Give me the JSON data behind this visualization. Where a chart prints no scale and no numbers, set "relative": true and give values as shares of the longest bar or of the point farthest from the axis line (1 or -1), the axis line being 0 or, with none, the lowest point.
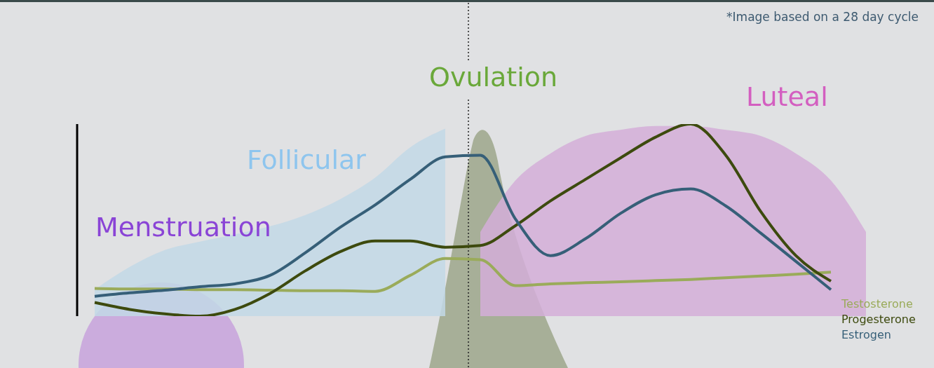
{
  "chart_data": {
    "type": "line",
    "relative": true,
    "legend": "right",
    "marker": "none",
    "line_style": "solid",
    "grid": false,
    "annotations": [
      "*Image based on a 28 day cycle",
      "Menstruation",
      "Follicular",
      "Ovulation",
      "Luteal"
    ],
    "categories": [
      null,
      null,
      null,
      null,
      null,
      null,
      null,
      null,
      null,
      null,
      null,
      null,
      null,
      null,
      null,
      null,
      null,
      null,
      null,
      null,
      null,
      null,
      null
    ],
    "series": [
      {
        "type": "area",
        "color": "#c2d8e6",
        "values": [
          0.138,
          0.256,
          0.344,
          0.388,
          0.426,
          0.468,
          0.526,
          0.609,
          0.721,
          0.879,
          0.976,
          null,
          null,
          null,
          null,
          null,
          null,
          null,
          null,
          null,
          null,
          null,
          null
        ]
      },
      {
        "type": "area",
        "color": "#d4aed8",
        "values": [
          null,
          null,
          null,
          null,
          null,
          null,
          null,
          null,
          null,
          null,
          null,
          0.438,
          0.706,
          0.847,
          0.938,
          0.97,
          0.99,
          0.99,
          0.97,
          0.938,
          0.847,
          0.706,
          0.438
        ]
      },
      {
        "name": "Testosterone",
        "color": "#9aab5a",
        "values": [
          0.144,
          0.141,
          0.141,
          0.138,
          0.138,
          0.135,
          0.132,
          0.132,
          0.129,
          0.212,
          0.3,
          0.294,
          0.159,
          0.168,
          0.174,
          0.179,
          0.185,
          0.191,
          0.2,
          0.209,
          0.218,
          0.229,
          null
        ]
      },
      {
        "name": "Progesterone",
        "color": "#3d4a0e",
        "values": [
          0.071,
          0.035,
          0.012,
          0,
          0.035,
          0.118,
          0.235,
          0.335,
          0.391,
          0.391,
          0.359,
          0.368,
          0.471,
          0.6,
          0.712,
          0.824,
          0.932,
          1,
          0.838,
          0.544,
          0.315,
          0.182,
          null
        ]
      },
      {
        "name": "Estrogen",
        "color": "#365f78",
        "values": [
          0.103,
          0.121,
          0.135,
          0.153,
          0.168,
          0.212,
          0.329,
          0.462,
          0.579,
          0.712,
          0.829,
          0.838,
          0.506,
          0.315,
          0.403,
          0.535,
          0.632,
          0.662,
          0.574,
          0.432,
          0.285,
          0.138,
          null
        ]
      }
    ]
  }
}
